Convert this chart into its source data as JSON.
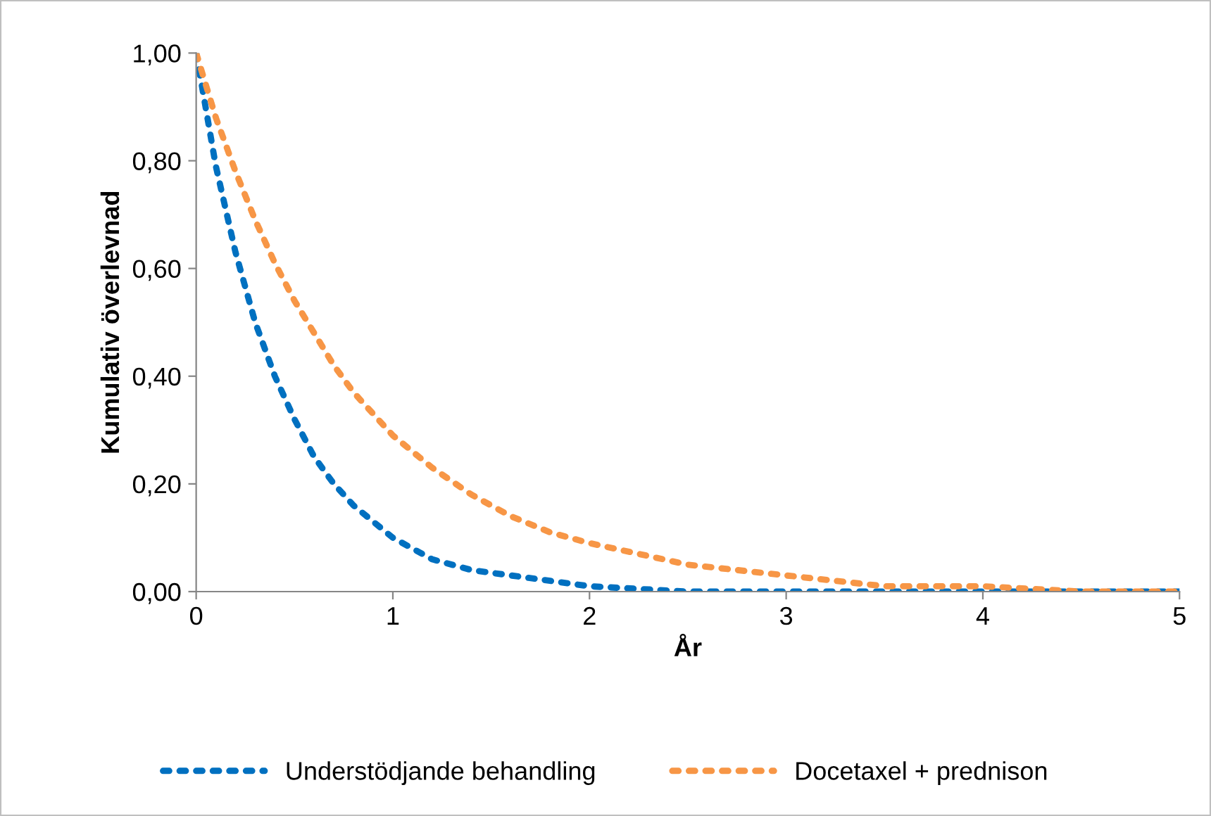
{
  "chart_data": {
    "type": "line",
    "xlabel": "År",
    "ylabel": "Kumulativ överlevnad",
    "x": [
      0,
      0.1,
      0.2,
      0.3,
      0.4,
      0.5,
      0.6,
      0.7,
      0.8,
      0.9,
      1.0,
      1.2,
      1.4,
      1.6,
      1.8,
      2.0,
      2.5,
      3,
      3.5,
      4,
      4.5,
      5
    ],
    "series": [
      {
        "name": "Understödjande behandling",
        "color": "#0070c0",
        "values": [
          1.0,
          0.79,
          0.63,
          0.5,
          0.4,
          0.32,
          0.25,
          0.2,
          0.16,
          0.13,
          0.1,
          0.06,
          0.04,
          0.03,
          0.02,
          0.01,
          0.0,
          0.0,
          0.0,
          0.0,
          0.0,
          0.0
        ]
      },
      {
        "name": "Docetaxel + prednison",
        "color": "#f79646",
        "values": [
          1.0,
          0.88,
          0.78,
          0.69,
          0.61,
          0.54,
          0.48,
          0.42,
          0.37,
          0.33,
          0.29,
          0.23,
          0.18,
          0.14,
          0.11,
          0.09,
          0.05,
          0.03,
          0.01,
          0.01,
          0.0,
          0.0
        ]
      }
    ],
    "xlim": [
      0,
      5
    ],
    "xticks": [
      0,
      1,
      2,
      3,
      4,
      5
    ],
    "ylim": [
      0,
      1
    ],
    "yticks": [
      {
        "value": 0,
        "label": "0,00"
      },
      {
        "value": 0.2,
        "label": "0,20"
      },
      {
        "value": 0.4,
        "label": "0,40"
      },
      {
        "value": 0.6,
        "label": "0,60"
      },
      {
        "value": 0.8,
        "label": "0,80"
      },
      {
        "value": 1,
        "label": "1,00"
      }
    ],
    "grid": false,
    "legend": "bottom",
    "marker": "none",
    "line_style": "dotted"
  }
}
